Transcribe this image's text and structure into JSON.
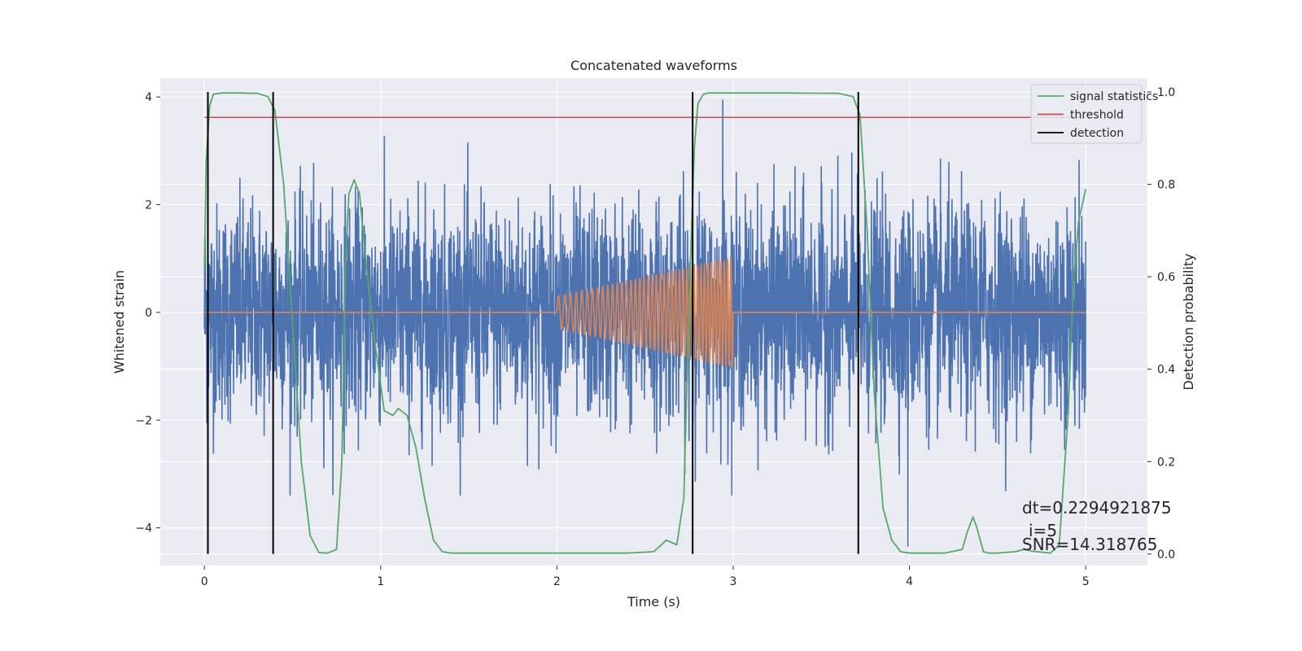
{
  "chart_data": {
    "type": "line",
    "title": "Concatenated waveforms",
    "xlabel": "Time (s)",
    "ylabel": "Whitened strain",
    "y2label": "Detection probability",
    "xlim": [
      -0.25,
      5.35
    ],
    "ylim": [
      -4.7,
      4.35
    ],
    "y2lim": [
      -0.025,
      1.03
    ],
    "xticks": [
      0,
      1,
      2,
      3,
      4,
      5
    ],
    "yticks": [
      -4,
      -2,
      0,
      2,
      4
    ],
    "y2ticks": [
      0.0,
      0.2,
      0.4,
      0.6,
      0.8,
      1.0
    ],
    "xtick_labels": [
      "0",
      "1",
      "2",
      "3",
      "4",
      "5"
    ],
    "ytick_labels": [
      "−4",
      "−2",
      "0",
      "2",
      "4"
    ],
    "y2tick_labels": [
      "0.0",
      "0.2",
      "0.4",
      "0.6",
      "0.8",
      "1.0"
    ],
    "grid": true,
    "legend_position": "top-right",
    "colors": {
      "background": "#eaeaf2",
      "grid": "#ffffff",
      "strain": "#4c72b0",
      "template": "#dd8452",
      "signal_statistics": "#55a868",
      "threshold": "#c44e52",
      "detection": "#000000"
    },
    "series": [
      {
        "name": "signal statistics",
        "axis": "right",
        "x": [
          0,
          0.01,
          0.03,
          0.05,
          0.1,
          0.2,
          0.3,
          0.36,
          0.4,
          0.45,
          0.5,
          0.55,
          0.6,
          0.65,
          0.7,
          0.75,
          0.78,
          0.8,
          0.82,
          0.85,
          0.88,
          0.92,
          0.97,
          1.02,
          1.07,
          1.1,
          1.15,
          1.2,
          1.25,
          1.3,
          1.35,
          1.4,
          1.6,
          2.0,
          2.4,
          2.55,
          2.62,
          2.68,
          2.72,
          2.75,
          2.78,
          2.8,
          2.83,
          2.86,
          2.9,
          3.0,
          3.3,
          3.6,
          3.68,
          3.72,
          3.76,
          3.8,
          3.85,
          3.9,
          3.95,
          4.0,
          4.1,
          4.2,
          4.3,
          4.33,
          4.36,
          4.38,
          4.42,
          4.45,
          4.5,
          4.6,
          4.65,
          4.7,
          4.8,
          4.85,
          4.9,
          4.93,
          4.96,
          5.0
        ],
        "values": [
          0.62,
          0.85,
          0.97,
          0.995,
          0.998,
          0.998,
          0.997,
          0.99,
          0.96,
          0.8,
          0.5,
          0.2,
          0.04,
          0.003,
          0.002,
          0.01,
          0.2,
          0.62,
          0.78,
          0.81,
          0.78,
          0.62,
          0.45,
          0.31,
          0.3,
          0.315,
          0.3,
          0.23,
          0.12,
          0.03,
          0.005,
          0.002,
          0.002,
          0.002,
          0.002,
          0.005,
          0.03,
          0.02,
          0.12,
          0.55,
          0.88,
          0.975,
          0.995,
          0.998,
          0.998,
          0.998,
          0.998,
          0.997,
          0.99,
          0.95,
          0.7,
          0.35,
          0.1,
          0.03,
          0.005,
          0.002,
          0.002,
          0.002,
          0.01,
          0.05,
          0.08,
          0.06,
          0.005,
          0.002,
          0.002,
          0.005,
          0.01,
          0.006,
          0.002,
          0.02,
          0.3,
          0.58,
          0.72,
          0.79
        ]
      },
      {
        "name": "threshold",
        "axis": "right",
        "x": [
          0,
          5
        ],
        "values": [
          0.945,
          0.945
        ]
      },
      {
        "name": "detection",
        "axis": "right",
        "x": [
          0.02,
          0.39,
          2.77,
          3.71
        ],
        "range": [
          0,
          1
        ]
      }
    ],
    "annotations": [
      "dt=0.2294921875",
      "i=5",
      "SNR=14.318765"
    ]
  }
}
